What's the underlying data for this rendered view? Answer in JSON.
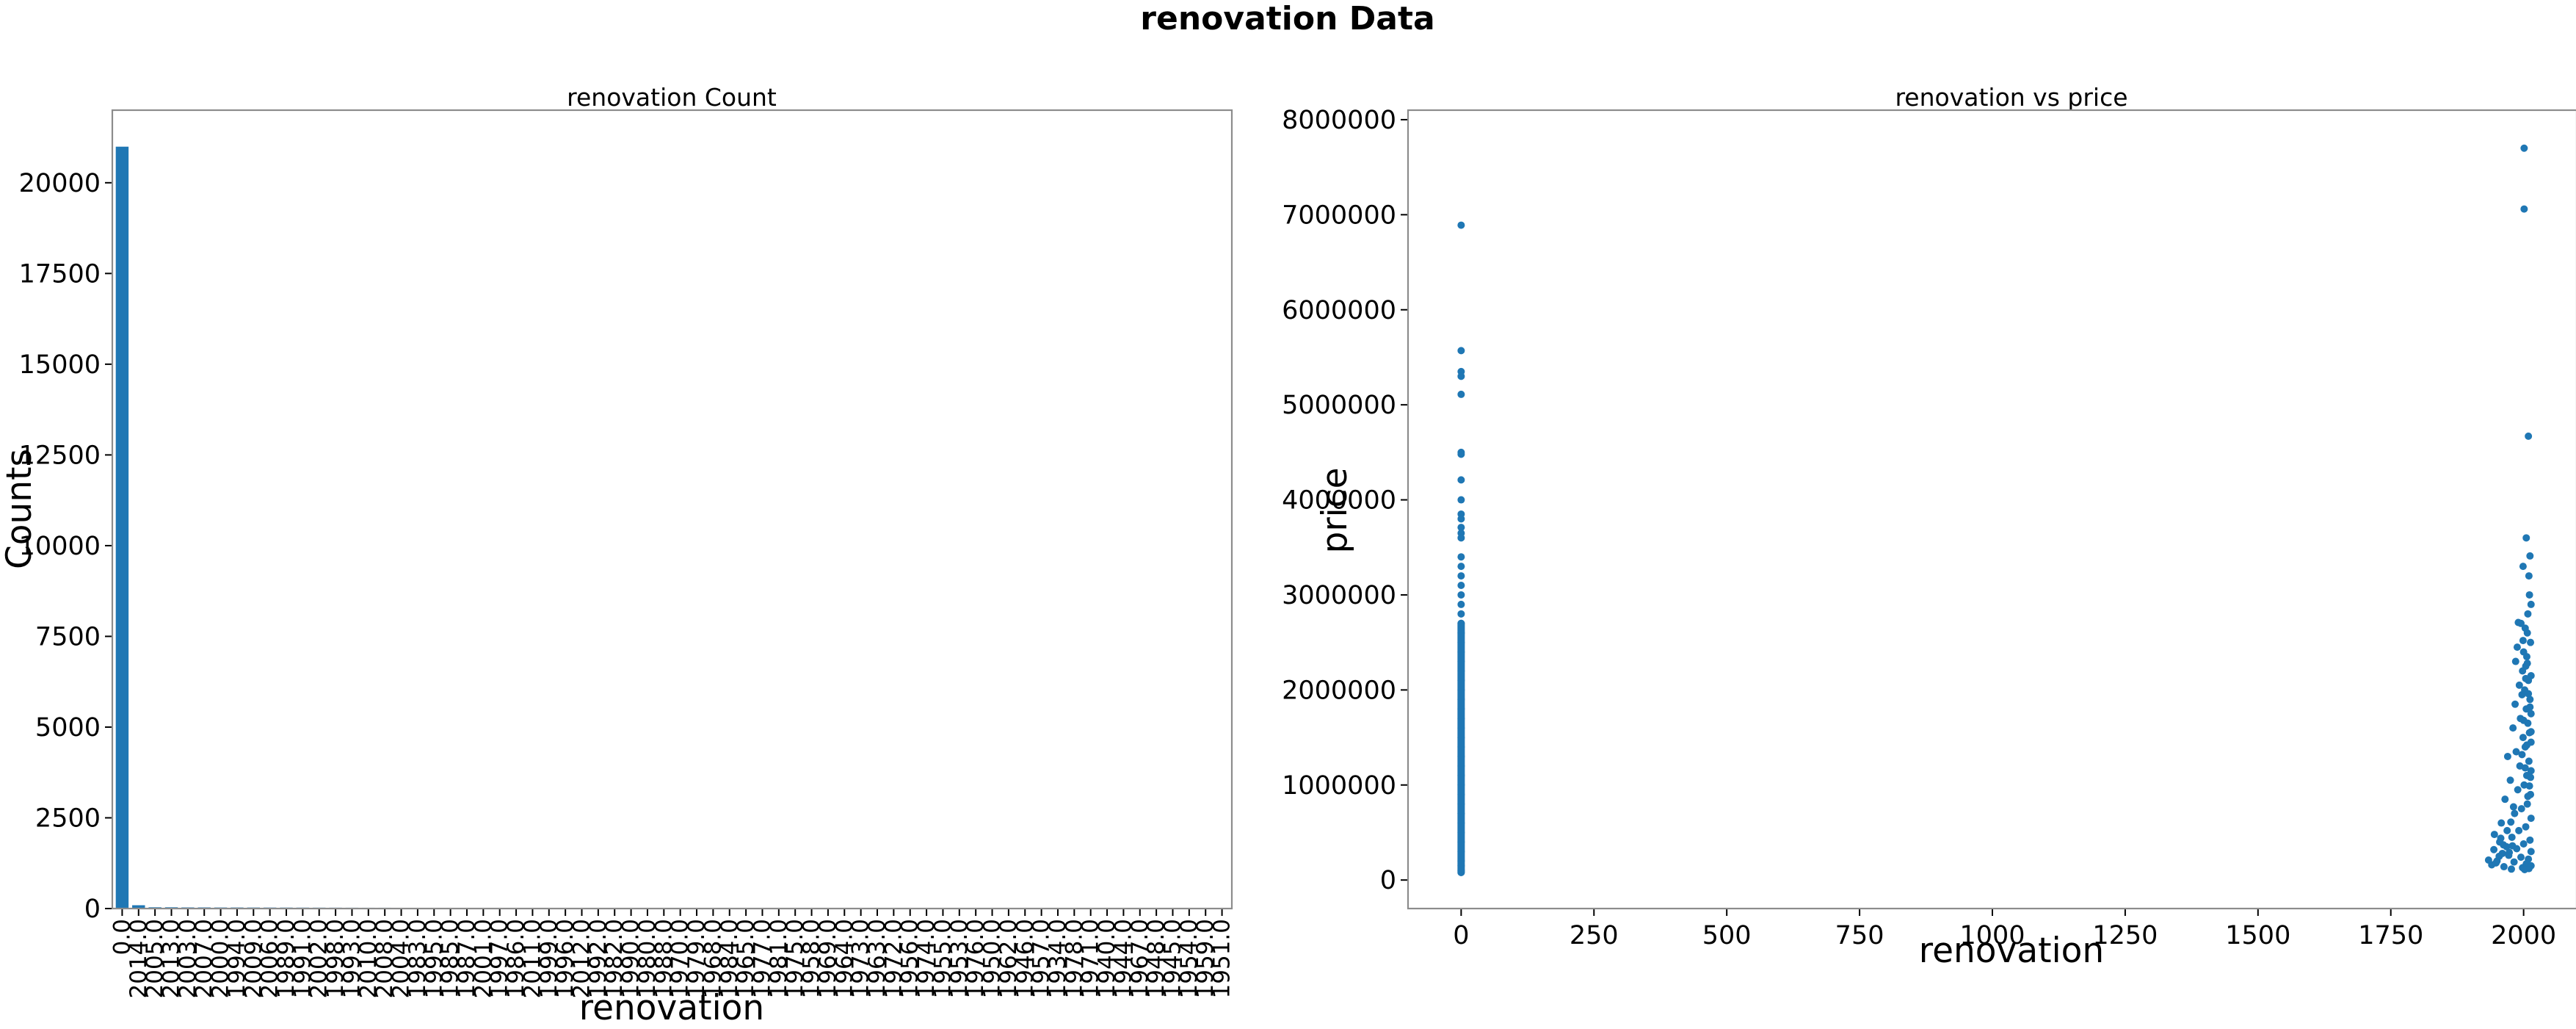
{
  "figure": {
    "title": "renovation Data"
  },
  "chart_data": [
    {
      "type": "bar",
      "title": "renovation Count",
      "xlabel": "renovation",
      "ylabel": "Counts",
      "color": "#1f77b4",
      "ylim": [
        0,
        22000
      ],
      "yticks": [
        0,
        2500,
        5000,
        7500,
        10000,
        12500,
        15000,
        17500,
        20000
      ],
      "categories": [
        "0.0",
        "2014.0",
        "2005.0",
        "2013.0",
        "2003.0",
        "2007.0",
        "2000.0",
        "1994.0",
        "2009.0",
        "2006.0",
        "1989.0",
        "1991.0",
        "2002.0",
        "1998.0",
        "1993.0",
        "2010.0",
        "2008.0",
        "2004.0",
        "1983.0",
        "1995.0",
        "1985.0",
        "1987.0",
        "2001.0",
        "1997.0",
        "1986.0",
        "2011.0",
        "1999.0",
        "1996.0",
        "2012.0",
        "1992.0",
        "1982.0",
        "1990.0",
        "1980.0",
        "1988.0",
        "1970.0",
        "1979.0",
        "1968.0",
        "1984.0",
        "1965.0",
        "1977.0",
        "1981.0",
        "1975.0",
        "1958.0",
        "1969.0",
        "1964.0",
        "1973.0",
        "1963.0",
        "1972.0",
        "1956.0",
        "1974.0",
        "1955.0",
        "1953.0",
        "1976.0",
        "1950.0",
        "1962.0",
        "1946.0",
        "1957.0",
        "1934.0",
        "1978.0",
        "1971.0",
        "1940.0",
        "1944.0",
        "1967.0",
        "1948.0",
        "1945.0",
        "1954.0",
        "1959.0",
        "1951.0"
      ],
      "values": [
        20994,
        91,
        35,
        35,
        31,
        31,
        29,
        29,
        28,
        27,
        26,
        25,
        24,
        23,
        22,
        21,
        21,
        20,
        18,
        17,
        17,
        17,
        16,
        16,
        14,
        14,
        14,
        13,
        12,
        11,
        11,
        11,
        8,
        7,
        6,
        6,
        5,
        5,
        4,
        4,
        4,
        4,
        4,
        4,
        4,
        4,
        3,
        3,
        3,
        3,
        3,
        3,
        3,
        2,
        2,
        2,
        2,
        2,
        2,
        2,
        2,
        2,
        2,
        1,
        1,
        1,
        1,
        1
      ]
    },
    {
      "type": "scatter",
      "title": "renovation vs price",
      "xlabel": "renovation",
      "ylabel": "price",
      "color": "#1f77b4",
      "xlim": [
        -100,
        2100
      ],
      "ylim": [
        -300000,
        8100000
      ],
      "xticks": [
        0,
        250,
        500,
        750,
        1000,
        1250,
        1500,
        1750,
        2000
      ],
      "yticks": [
        0,
        1000000,
        2000000,
        3000000,
        4000000,
        5000000,
        6000000,
        7000000,
        8000000
      ],
      "points": [
        [
          0,
          6890000
        ],
        [
          0,
          5570000
        ],
        [
          0,
          5350000
        ],
        [
          0,
          5300000
        ],
        [
          0,
          5110000
        ],
        [
          0,
          4500000
        ],
        [
          0,
          4480000
        ],
        [
          0,
          4210000
        ],
        [
          0,
          4000000
        ],
        [
          0,
          3850000
        ],
        [
          0,
          3800000
        ],
        [
          0,
          3710000
        ],
        [
          0,
          3650000
        ],
        [
          0,
          3600000
        ],
        [
          0,
          3400000
        ],
        [
          0,
          3300000
        ],
        [
          0,
          3200000
        ],
        [
          0,
          3100000
        ],
        [
          0,
          3000000
        ],
        [
          0,
          2900000
        ],
        [
          0,
          2800000
        ],
        [
          0,
          2700000
        ],
        [
          0,
          2600000
        ],
        [
          0,
          2500000
        ],
        [
          0,
          2400000
        ],
        [
          0,
          2300000
        ],
        [
          0,
          2200000
        ],
        [
          0,
          2100000
        ],
        [
          0,
          2000000
        ],
        [
          0,
          1900000
        ],
        [
          0,
          1800000
        ],
        [
          0,
          1700000
        ],
        [
          0,
          1600000
        ],
        [
          0,
          1500000
        ],
        [
          0,
          1400000
        ],
        [
          0,
          1300000
        ],
        [
          0,
          1200000
        ],
        [
          0,
          1100000
        ],
        [
          0,
          1000000
        ],
        [
          0,
          900000
        ],
        [
          0,
          800000
        ],
        [
          0,
          700000
        ],
        [
          0,
          600000
        ],
        [
          0,
          500000
        ],
        [
          0,
          400000
        ],
        [
          0,
          300000
        ],
        [
          0,
          200000
        ],
        [
          0,
          150000
        ],
        [
          0,
          100000
        ],
        [
          0,
          80000
        ],
        [
          2001,
          7700000
        ],
        [
          2001,
          7060000
        ],
        [
          2009,
          4670000
        ],
        [
          2005,
          3600000
        ],
        [
          2012,
          3410000
        ],
        [
          1999,
          3300000
        ],
        [
          2010,
          3200000
        ],
        [
          2011,
          3000000
        ],
        [
          2014,
          2900000
        ],
        [
          2008,
          2800000
        ],
        [
          1990,
          2710000
        ],
        [
          1995,
          2700000
        ],
        [
          2003,
          2650000
        ],
        [
          2007,
          2600000
        ],
        [
          2013,
          2500000
        ],
        [
          1988,
          2450000
        ],
        [
          2000,
          2400000
        ],
        [
          2006,
          2350000
        ],
        [
          1985,
          2300000
        ],
        [
          2004,
          2250000
        ],
        [
          1998,
          2200000
        ],
        [
          2014,
          2150000
        ],
        [
          2009,
          2100000
        ],
        [
          1992,
          2050000
        ],
        [
          2002,
          2000000
        ],
        [
          1997,
          1950000
        ],
        [
          2012,
          1900000
        ],
        [
          1984,
          1850000
        ],
        [
          2005,
          1800000
        ],
        [
          2014,
          1750000
        ],
        [
          1994,
          1700000
        ],
        [
          2008,
          1650000
        ],
        [
          1980,
          1600000
        ],
        [
          2011,
          1550000
        ],
        [
          1999,
          1500000
        ],
        [
          2014,
          1450000
        ],
        [
          2003,
          1400000
        ],
        [
          1986,
          1350000
        ],
        [
          1970,
          1300000
        ],
        [
          2010,
          1250000
        ],
        [
          1993,
          1200000
        ],
        [
          2014,
          1150000
        ],
        [
          2006,
          1100000
        ],
        [
          1975,
          1050000
        ],
        [
          2001,
          1000000
        ],
        [
          1989,
          950000
        ],
        [
          2013,
          900000
        ],
        [
          1965,
          850000
        ],
        [
          2007,
          800000
        ],
        [
          1996,
          750000
        ],
        [
          1983,
          700000
        ],
        [
          2014,
          650000
        ],
        [
          1958,
          600000
        ],
        [
          2004,
          560000
        ],
        [
          1991,
          520000
        ],
        [
          1945,
          480000
        ],
        [
          1978,
          450000
        ],
        [
          2012,
          420000
        ],
        [
          1955,
          400000
        ],
        [
          2000,
          380000
        ],
        [
          1968,
          350000
        ],
        [
          1987,
          330000
        ],
        [
          2014,
          300000
        ],
        [
          1960,
          280000
        ],
        [
          1972,
          260000
        ],
        [
          1995,
          240000
        ],
        [
          2009,
          220000
        ],
        [
          1950,
          200000
        ],
        [
          1982,
          190000
        ],
        [
          2005,
          170000
        ],
        [
          1940,
          160000
        ],
        [
          2014,
          150000
        ],
        [
          1963,
          140000
        ],
        [
          1998,
          130000
        ],
        [
          2010,
          120000
        ],
        [
          1977,
          115000
        ],
        [
          2002,
          110000
        ],
        [
          1948,
          180000
        ],
        [
          1954,
          250000
        ],
        [
          1934,
          210000
        ],
        [
          1944,
          320000
        ],
        [
          1957,
          440000
        ],
        [
          1962,
          370000
        ],
        [
          1969,
          520000
        ],
        [
          1973,
          290000
        ],
        [
          1976,
          610000
        ],
        [
          1979,
          360000
        ],
        [
          1981,
          770000
        ],
        [
          2008,
          880000
        ],
        [
          2011,
          990000
        ],
        [
          2013,
          1080000
        ],
        [
          2003,
          1180000
        ],
        [
          1997,
          1320000
        ],
        [
          2006,
          1420000
        ],
        [
          2014,
          1560000
        ],
        [
          2000,
          1680000
        ],
        [
          2012,
          1820000
        ],
        [
          2009,
          1960000
        ],
        [
          2004,
          2120000
        ],
        [
          2007,
          2280000
        ],
        [
          1999,
          2520000
        ]
      ]
    }
  ]
}
